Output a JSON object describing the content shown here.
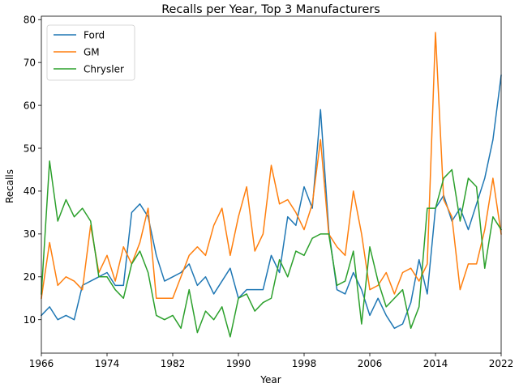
{
  "chart_data": {
    "type": "line",
    "title": "Recalls per Year, Top 3 Manufacturers",
    "xlabel": "Year",
    "ylabel": "Recalls",
    "xlim": [
      1966,
      2022
    ],
    "ylim": [
      2.2,
      80.8
    ],
    "xticks": [
      1966,
      1974,
      1982,
      1990,
      1998,
      2006,
      2014,
      2022
    ],
    "yticks": [
      10,
      20,
      30,
      40,
      50,
      60,
      70,
      80
    ],
    "grid": false,
    "legend_position": "top-left",
    "x": [
      1966,
      1967,
      1968,
      1969,
      1970,
      1971,
      1972,
      1973,
      1974,
      1975,
      1976,
      1977,
      1978,
      1979,
      1980,
      1981,
      1982,
      1983,
      1984,
      1985,
      1986,
      1987,
      1988,
      1989,
      1990,
      1991,
      1992,
      1993,
      1994,
      1995,
      1996,
      1997,
      1998,
      1999,
      2000,
      2001,
      2002,
      2003,
      2004,
      2005,
      2006,
      2007,
      2008,
      2009,
      2010,
      2011,
      2012,
      2013,
      2014,
      2015,
      2016,
      2017,
      2018,
      2019,
      2020,
      2021,
      2022
    ],
    "series": [
      {
        "name": "Ford",
        "color": "#1f77b4",
        "values": [
          11,
          13,
          10,
          11,
          10,
          18,
          19,
          20,
          21,
          18,
          18,
          35,
          37,
          34,
          25,
          19,
          20,
          21,
          23,
          18,
          20,
          16,
          19,
          22,
          15,
          17,
          17,
          17,
          25,
          21,
          34,
          32,
          41,
          36,
          59,
          31,
          17,
          16,
          21,
          17,
          11,
          15,
          11,
          8,
          9,
          14,
          24,
          16,
          36,
          39,
          33,
          36,
          31,
          37,
          43,
          52,
          67
        ]
      },
      {
        "name": "GM",
        "color": "#ff7f0e",
        "values": [
          15,
          28,
          18,
          20,
          19,
          17,
          32,
          21,
          25,
          19,
          27,
          23,
          28,
          36,
          15,
          15,
          15,
          20,
          25,
          27,
          25,
          32,
          36,
          25,
          34,
          41,
          26,
          30,
          46,
          37,
          38,
          35,
          31,
          37,
          52,
          30,
          27,
          25,
          40,
          30,
          17,
          18,
          21,
          16,
          21,
          22,
          19,
          23,
          77,
          38,
          34,
          17,
          23,
          23,
          31,
          43,
          30
        ]
      },
      {
        "name": "Chrysler",
        "color": "#2ca02c",
        "values": [
          16,
          47,
          33,
          38,
          34,
          36,
          33,
          20,
          20,
          17,
          15,
          23,
          26,
          21,
          11,
          10,
          11,
          8,
          17,
          7,
          12,
          10,
          13,
          6,
          15,
          16,
          12,
          14,
          15,
          24,
          20,
          26,
          25,
          29,
          30,
          30,
          18,
          19,
          26,
          9,
          27,
          19,
          13,
          15,
          17,
          8,
          13,
          36,
          36,
          43,
          45,
          33,
          43,
          41,
          22,
          34,
          31
        ]
      }
    ]
  }
}
